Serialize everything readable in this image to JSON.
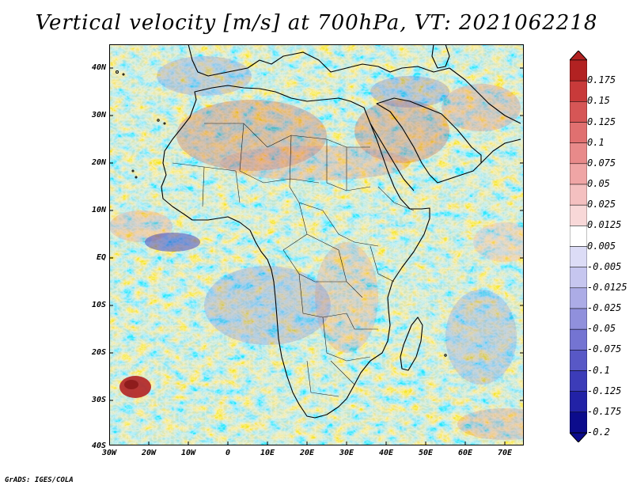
{
  "title": "Vertical velocity [m/s] at 700hPa, VT: 2021062218",
  "map": {
    "variable": "Vertical velocity",
    "units": "m/s",
    "level": "700hPa",
    "valid_time": "2021062218",
    "region": "Africa",
    "lat_ticks": [
      "40N",
      "30N",
      "20N",
      "10N",
      "EQ",
      "10S",
      "20S",
      "30S",
      "40S"
    ],
    "lon_ticks": [
      "30W",
      "20W",
      "10W",
      "0",
      "10E",
      "20E",
      "30E",
      "40E",
      "50E",
      "60E",
      "70E"
    ]
  },
  "legend": {
    "labels": [
      "0.175",
      "0.15",
      "0.125",
      "0.1",
      "0.075",
      "0.05",
      "0.025",
      "0.0125",
      "0.005",
      "-0.005",
      "-0.0125",
      "-0.025",
      "-0.05",
      "-0.075",
      "-0.1",
      "-0.125",
      "-0.175",
      "-0.2"
    ],
    "colors": [
      "#b22222",
      "#c83a3a",
      "#d65656",
      "#e07070",
      "#e88a8a",
      "#efa5a5",
      "#f4c0c0",
      "#f8d8d8",
      "#ffffff",
      "#dcdcf6",
      "#c6c6ef",
      "#acace6",
      "#9090dc",
      "#7474d2",
      "#5858c6",
      "#3c3cb8",
      "#2222a6",
      "#0c0c8c"
    ]
  },
  "credit": "GrADS: IGES/COLA"
}
